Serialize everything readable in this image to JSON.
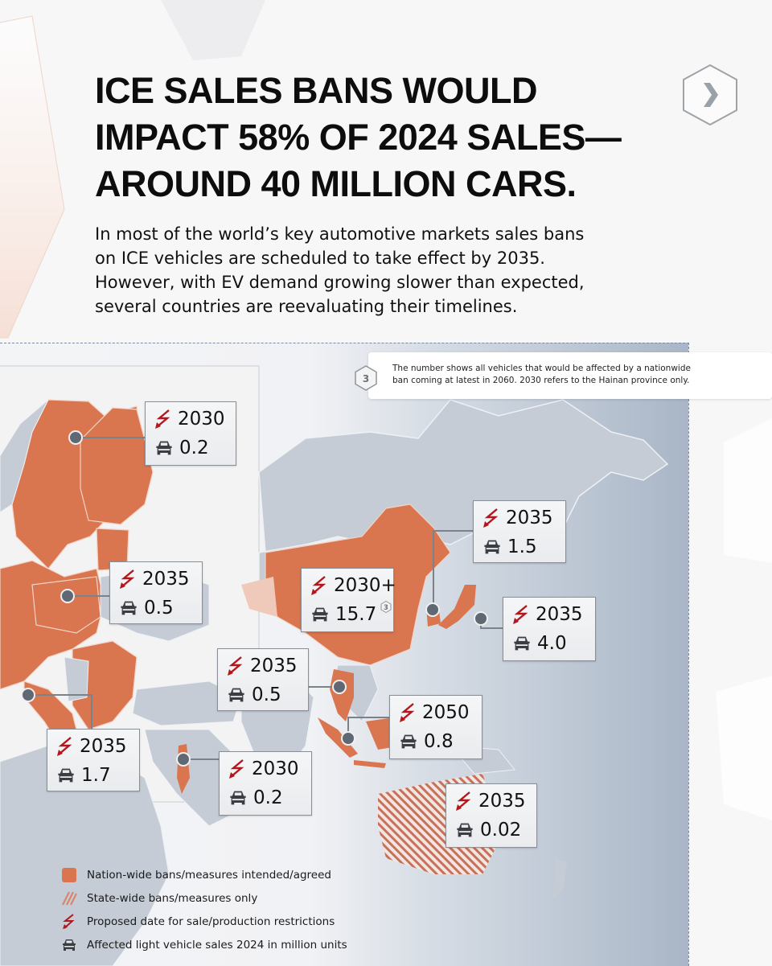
{
  "header": {
    "title_lines": [
      "ICE SALES BANS WOULD",
      "IMPACT 58% OF 2024 SALES—",
      "AROUND 40 MILLION CARS."
    ],
    "subtitle_lines": [
      "In most of the world’s key automotive markets sales bans",
      "on ICE vehicles are scheduled to take effect by 2035.",
      "However, with EV demand growing slower than expected,",
      "several countries are reevaluating their timelines."
    ],
    "next_icon": "chevron-right-icon"
  },
  "footnote": {
    "badge": "3",
    "lines": [
      "The number shows all vehicles that would be affected by a nationwide",
      "ban coming at latest in 2060. 2030 refers to the Hainan province only."
    ]
  },
  "colors": {
    "nationwide": "#d9754f",
    "statewide_stripe": "#c8705a",
    "land": "#c5ccd6",
    "arrow": "#b2171d",
    "callout_border": "#8a8f96"
  },
  "callouts": [
    {
      "region": "Nordics",
      "year": "2030",
      "sales": "0.2"
    },
    {
      "region": "Central Europe",
      "year": "2035",
      "sales": "0.5"
    },
    {
      "region": "Southern Europe",
      "year": "2035",
      "sales": "1.7"
    },
    {
      "region": "Madagascar region",
      "year": "2030",
      "sales": "0.2"
    },
    {
      "region": "Thailand",
      "year": "2035",
      "sales": "0.5"
    },
    {
      "region": "China",
      "year": "2030+",
      "sales": "15.7",
      "footnote": "3"
    },
    {
      "region": "South Korea",
      "year": "2035",
      "sales": "1.5"
    },
    {
      "region": "Japan",
      "year": "2035",
      "sales": "4.0"
    },
    {
      "region": "Indonesia",
      "year": "2050",
      "sales": "0.8"
    },
    {
      "region": "Australia",
      "year": "2035",
      "sales": "0.02"
    }
  ],
  "legend": [
    {
      "icon": "nationwide-swatch-icon",
      "label": "Nation-wide bans/measures intended/agreed"
    },
    {
      "icon": "statewide-hatch-icon",
      "label": "State-wide bans/measures only"
    },
    {
      "icon": "lightning-arrow-icon",
      "label": "Proposed date for sale/production restrictions"
    },
    {
      "icon": "car-icon",
      "label": "Affected light vehicle sales 2024 in million units"
    }
  ]
}
